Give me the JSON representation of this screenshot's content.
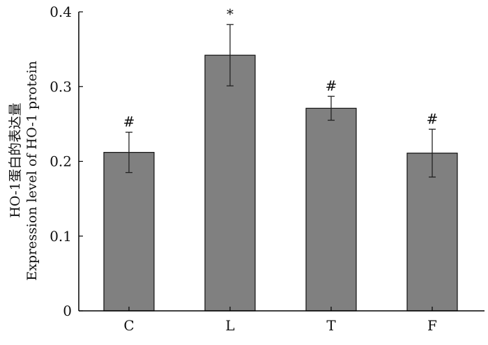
{
  "chart_data": {
    "type": "bar",
    "title": "",
    "xlabel": "",
    "ylabel": [
      "HO-1蛋白的表达量",
      "Expression level of HO-1 protein"
    ],
    "categories": [
      "C",
      "L",
      "T",
      "F"
    ],
    "values": [
      0.212,
      0.342,
      0.271,
      0.211
    ],
    "errors": [
      0.027,
      0.041,
      0.016,
      0.032
    ],
    "annotations": [
      "#",
      "*",
      "#",
      "#"
    ],
    "ylim": [
      0,
      0.4
    ],
    "yticks": [
      0,
      0.1,
      0.2,
      0.3,
      0.4
    ],
    "ytick_labels": [
      "0",
      "0.1",
      "0.2",
      "0.3",
      "0.4"
    ],
    "grid": false,
    "legend": "none",
    "bar_color": "#808080",
    "edge_color": "#111111"
  }
}
